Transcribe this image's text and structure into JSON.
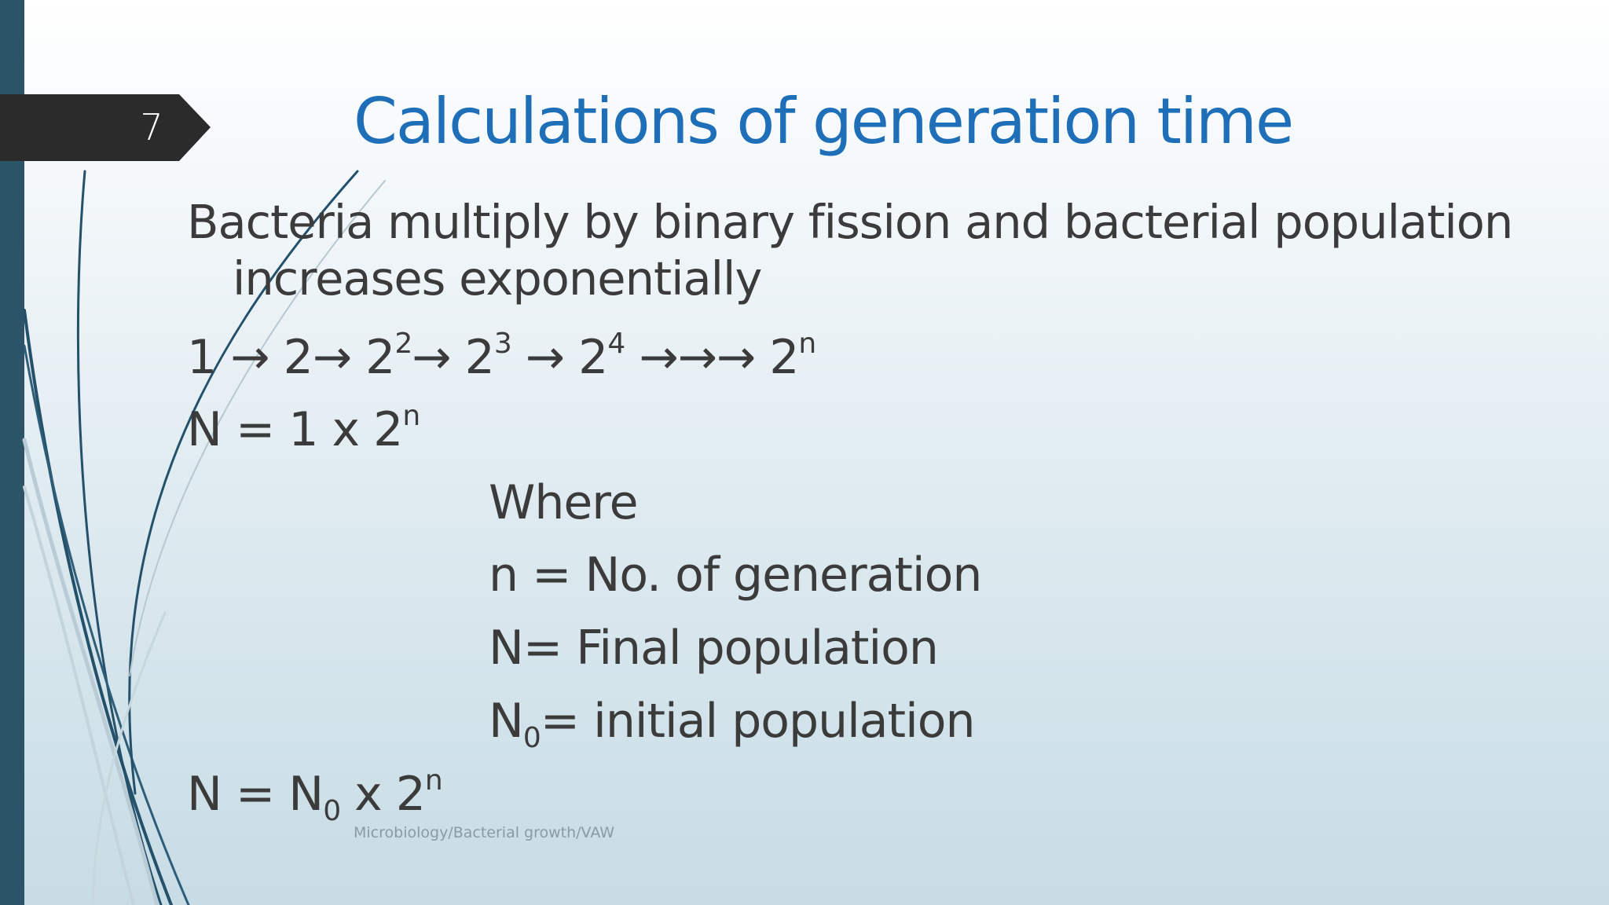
{
  "slide": {
    "number": "7",
    "title": "Calculations of generation time",
    "body_line1": "Bacteria multiply by binary fission and bacterial population",
    "body_line2": "increases exponentially",
    "sequence": {
      "a": "1",
      "arrow": "→",
      "b": "2",
      "base": "2",
      "exp2": "2",
      "exp3": "3",
      "exp4": "4",
      "triple_arrow": "→→→",
      "expn": "n"
    },
    "equation1": {
      "lhs": "N = 1 x 2",
      "exp": "n"
    },
    "where_label": "Where",
    "definitions": {
      "n": "n = No. of generation",
      "N": "N= Final population",
      "N0_symbol": "N",
      "N0_sub": "0",
      "N0_text": "= initial population"
    },
    "equation2": {
      "lhs": "N = N",
      "sub": "0",
      "mid": " x 2",
      "exp": "n"
    },
    "footer": "Microbiology/Bacterial growth/VAW"
  },
  "colors": {
    "accent_title": "#1f6fb8",
    "sidebar": "#2c5468",
    "number_tab": "#2b2b2b",
    "body_text": "#3b3b3b"
  }
}
